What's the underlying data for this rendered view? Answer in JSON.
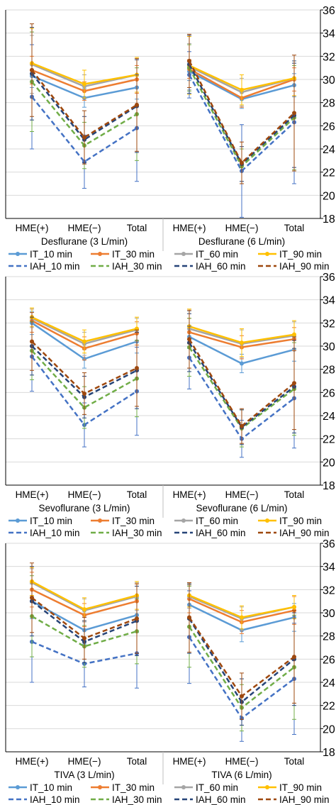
{
  "colors": {
    "IT_10 min": "#5b9bd5",
    "IT_30 min": "#ed7d31",
    "IT_60 min": "#a5a5a5",
    "IT_90 min": "#ffc000",
    "IAH_10 min": "#4472c4",
    "IAH_30 min": "#70ad47",
    "IAH_60 min": "#264478",
    "IAH_90 min": "#9e480e",
    "axis": "#000000",
    "grid": "#d9d9d9"
  },
  "chart_data": [
    {
      "type": "line",
      "ylim": [
        18,
        36
      ],
      "yticks": [
        "18",
        "20",
        "22",
        "24",
        "26",
        "28",
        "30",
        "32",
        "34",
        "36"
      ],
      "grid": true,
      "legend_position": "bottom",
      "groups": [
        {
          "label": "Desflurane (3 L/min)",
          "categories": [
            "HME(+)",
            "HME(−)",
            "Total"
          ]
        },
        {
          "label": "Desflurane (6 L/min)",
          "categories": [
            "HME(+)",
            "HME(−)",
            "Total"
          ]
        }
      ],
      "series": [
        {
          "name": "IT_10 min",
          "dashed": false,
          "values": [
            [
              30.3,
              28.4,
              29.3
            ],
            [
              30.7,
              28.3,
              29.5
            ]
          ],
          "err": [
            [
              1.0,
              0.8,
              1.0
            ],
            [
              0.8,
              0.8,
              1.0
            ]
          ]
        },
        {
          "name": "IT_30 min",
          "dashed": false,
          "values": [
            [
              30.8,
              29.0,
              30.0
            ],
            [
              30.9,
              28.4,
              30.0
            ]
          ],
          "err": [
            [
              1.2,
              0.8,
              1.2
            ],
            [
              0.8,
              0.8,
              1.0
            ]
          ]
        },
        {
          "name": "IT_60 min",
          "dashed": false,
          "values": [
            [
              31.3,
              29.4,
              30.4
            ],
            [
              31.1,
              28.9,
              30.1
            ]
          ],
          "err": [
            [
              2.5,
              1.0,
              1.5
            ],
            [
              2.0,
              1.2,
              1.5
            ]
          ]
        },
        {
          "name": "IT_90 min",
          "dashed": false,
          "values": [
            [
              31.4,
              29.6,
              30.4
            ],
            [
              31.2,
              29.1,
              30.1
            ]
          ],
          "err": [
            [
              3.0,
              1.2,
              1.5
            ],
            [
              2.5,
              1.3,
              1.5
            ]
          ]
        },
        {
          "name": "IAH_10 min",
          "dashed": true,
          "values": [
            [
              28.5,
              22.9,
              25.8
            ],
            [
              30.4,
              22.1,
              26.3
            ]
          ],
          "err": [
            [
              4.5,
              2.3,
              4.6
            ],
            [
              2.0,
              4.0,
              5.3
            ]
          ]
        },
        {
          "name": "IAH_30 min",
          "dashed": true,
          "values": [
            [
              29.8,
              24.3,
              27.0
            ],
            [
              31.0,
              22.5,
              26.7
            ]
          ],
          "err": [
            [
              4.3,
              2.0,
              4.0
            ],
            [
              2.0,
              1.5,
              4.5
            ]
          ]
        },
        {
          "name": "IAH_60 min",
          "dashed": true,
          "values": [
            [
              30.5,
              24.8,
              27.7
            ],
            [
              31.3,
              22.7,
              26.9
            ]
          ],
          "err": [
            [
              4.0,
              2.0,
              4.0
            ],
            [
              2.5,
              1.5,
              4.5
            ]
          ]
        },
        {
          "name": "IAH_90 min",
          "dashed": true,
          "values": [
            [
              30.8,
              25.0,
              27.8
            ],
            [
              31.6,
              22.8,
              27.1
            ]
          ],
          "err": [
            [
              4.0,
              2.3,
              4.0
            ],
            [
              2.3,
              1.8,
              5.0
            ]
          ]
        }
      ]
    },
    {
      "type": "line",
      "ylim": [
        18,
        36
      ],
      "yticks": [
        "18",
        "20",
        "22",
        "24",
        "26",
        "28",
        "30",
        "32",
        "34",
        "36"
      ],
      "grid": true,
      "legend_position": "bottom",
      "groups": [
        {
          "label": "Sevoflurane (3 L/min)",
          "categories": [
            "HME(+)",
            "HME(−)",
            "Total"
          ]
        },
        {
          "label": "Sevoflurane (6 L/min)",
          "categories": [
            "HME(+)",
            "HME(−)",
            "Total"
          ]
        }
      ],
      "series": [
        {
          "name": "IT_10 min",
          "dashed": false,
          "values": [
            [
              32.0,
              28.9,
              30.4
            ],
            [
              30.8,
              28.5,
              29.7
            ]
          ],
          "err": [
            [
              1.0,
              0.8,
              1.0
            ],
            [
              1.0,
              0.8,
              1.0
            ]
          ]
        },
        {
          "name": "IT_30 min",
          "dashed": false,
          "values": [
            [
              32.2,
              29.8,
              31.1
            ],
            [
              31.2,
              29.9,
              30.6
            ]
          ],
          "err": [
            [
              1.0,
              1.0,
              1.0
            ],
            [
              1.2,
              1.0,
              1.0
            ]
          ]
        },
        {
          "name": "IT_60 min",
          "dashed": false,
          "values": [
            [
              32.4,
              30.2,
              31.4
            ],
            [
              31.5,
              30.2,
              30.9
            ]
          ],
          "err": [
            [
              0.8,
              1.0,
              1.0
            ],
            [
              1.5,
              1.2,
              1.2
            ]
          ]
        },
        {
          "name": "IT_90 min",
          "dashed": false,
          "values": [
            [
              32.5,
              30.4,
              31.5
            ],
            [
              31.7,
              30.3,
              31.0
            ]
          ],
          "err": [
            [
              0.8,
              1.0,
              1.0
            ],
            [
              1.5,
              1.2,
              1.2
            ]
          ]
        },
        {
          "name": "IAH_10 min",
          "dashed": true,
          "values": [
            [
              29.1,
              23.2,
              26.1
            ],
            [
              29.0,
              22.0,
              25.5
            ]
          ],
          "err": [
            [
              3.0,
              1.9,
              3.8
            ],
            [
              2.7,
              1.6,
              4.3
            ]
          ]
        },
        {
          "name": "IAH_30 min",
          "dashed": true,
          "values": [
            [
              29.6,
              24.7,
              27.2
            ],
            [
              29.9,
              22.9,
              26.3
            ]
          ],
          "err": [
            [
              2.5,
              1.8,
              3.3
            ],
            [
              2.5,
              1.6,
              4.0
            ]
          ]
        },
        {
          "name": "IAH_60 min",
          "dashed": true,
          "values": [
            [
              30.0,
              25.6,
              27.9
            ],
            [
              30.3,
              23.0,
              26.5
            ]
          ],
          "err": [
            [
              2.5,
              1.8,
              3.3
            ],
            [
              2.5,
              1.5,
              4.0
            ]
          ]
        },
        {
          "name": "IAH_90 min",
          "dashed": true,
          "values": [
            [
              30.4,
              25.9,
              28.1
            ],
            [
              30.6,
              23.1,
              26.8
            ]
          ],
          "err": [
            [
              2.5,
              1.8,
              3.3
            ],
            [
              2.5,
              1.5,
              4.0
            ]
          ]
        }
      ]
    },
    {
      "type": "line",
      "ylim": [
        18,
        36
      ],
      "yticks": [
        "18",
        "20",
        "22",
        "24",
        "26",
        "28",
        "30",
        "32",
        "34",
        "36"
      ],
      "grid": true,
      "legend_position": "bottom",
      "groups": [
        {
          "label": "TIVA (3 L/min)",
          "categories": [
            "HME(+)",
            "HME(−)",
            "Total"
          ]
        },
        {
          "label": "TIVA (6 L/min)",
          "categories": [
            "HME(+)",
            "HME(−)",
            "Total"
          ]
        }
      ],
      "series": [
        {
          "name": "IT_10 min",
          "dashed": false,
          "values": [
            [
              31.0,
              28.5,
              29.8
            ],
            [
              30.7,
              28.5,
              29.6
            ]
          ],
          "err": [
            [
              1.5,
              1.2,
              1.5
            ],
            [
              1.2,
              1.0,
              1.2
            ]
          ]
        },
        {
          "name": "IT_30 min",
          "dashed": false,
          "values": [
            [
              32.0,
              29.8,
              31.0
            ],
            [
              31.2,
              29.2,
              30.2
            ]
          ],
          "err": [
            [
              1.5,
              1.0,
              1.5
            ],
            [
              1.2,
              1.0,
              1.2
            ]
          ]
        },
        {
          "name": "IT_60 min",
          "dashed": false,
          "values": [
            [
              32.6,
              30.2,
              31.4
            ],
            [
              31.4,
              29.5,
              30.5
            ]
          ],
          "err": [
            [
              1.2,
              1.0,
              1.2
            ],
            [
              1.0,
              1.0,
              1.0
            ]
          ]
        },
        {
          "name": "IT_90 min",
          "dashed": false,
          "values": [
            [
              32.7,
              30.3,
              31.5
            ],
            [
              31.5,
              29.6,
              30.5
            ]
          ],
          "err": [
            [
              1.2,
              1.0,
              1.2
            ],
            [
              1.0,
              1.0,
              1.0
            ]
          ]
        },
        {
          "name": "IAH_10 min",
          "dashed": true,
          "values": [
            [
              27.5,
              25.6,
              26.5
            ],
            [
              27.9,
              20.9,
              24.3
            ]
          ],
          "err": [
            [
              3.5,
              2.0,
              3.0
            ],
            [
              4.0,
              2.0,
              4.8
            ]
          ]
        },
        {
          "name": "IAH_30 min",
          "dashed": true,
          "values": [
            [
              29.7,
              27.1,
              28.4
            ],
            [
              28.8,
              21.8,
              25.3
            ]
          ],
          "err": [
            [
              3.5,
              1.8,
              2.8
            ],
            [
              3.5,
              2.0,
              4.5
            ]
          ]
        },
        {
          "name": "IAH_60 min",
          "dashed": true,
          "values": [
            [
              31.0,
              27.5,
              29.3
            ],
            [
              29.5,
              22.3,
              26.0
            ]
          ],
          "err": [
            [
              3.0,
              1.8,
              3.0
            ],
            [
              3.0,
              2.0,
              4.0
            ]
          ]
        },
        {
          "name": "IAH_90 min",
          "dashed": true,
          "values": [
            [
              31.3,
              27.8,
              29.5
            ],
            [
              29.6,
              22.8,
              26.2
            ]
          ],
          "err": [
            [
              3.0,
              1.8,
              3.0
            ],
            [
              3.0,
              2.0,
              4.0
            ]
          ]
        }
      ]
    }
  ]
}
